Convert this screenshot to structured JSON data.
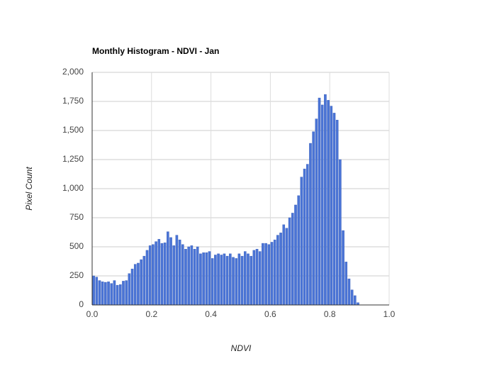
{
  "chart_data": {
    "type": "histogram",
    "title": "Monthly Histogram - NDVI - Jan",
    "xlabel": "NDVI",
    "ylabel": "Pixel Count",
    "bins": [
      0,
      0.01,
      0.02,
      0.03,
      0.04,
      0.05,
      0.06,
      0.07,
      0.08,
      0.09,
      0.1,
      0.11,
      0.12,
      0.13,
      0.14,
      0.15,
      0.16,
      0.17,
      0.18,
      0.19,
      0.2,
      0.21,
      0.22,
      0.23,
      0.24,
      0.25,
      0.26,
      0.27,
      0.28,
      0.29,
      0.3,
      0.31,
      0.32,
      0.33,
      0.34,
      0.35,
      0.36,
      0.37,
      0.38,
      0.39,
      0.4,
      0.41,
      0.42,
      0.43,
      0.44,
      0.45,
      0.46,
      0.47,
      0.48,
      0.49,
      0.5,
      0.51,
      0.52,
      0.53,
      0.54,
      0.55,
      0.56,
      0.57,
      0.58,
      0.59,
      0.6,
      0.61,
      0.62,
      0.63,
      0.64,
      0.65,
      0.66,
      0.67,
      0.68,
      0.69,
      0.7,
      0.71,
      0.72,
      0.73,
      0.74,
      0.75,
      0.76,
      0.77,
      0.78,
      0.79,
      0.8,
      0.81,
      0.82,
      0.83,
      0.84,
      0.85,
      0.86,
      0.87,
      0.88,
      0.89,
      0.9
    ],
    "counts": [
      250,
      240,
      210,
      200,
      195,
      200,
      185,
      210,
      170,
      175,
      205,
      210,
      270,
      310,
      350,
      360,
      390,
      420,
      470,
      510,
      520,
      545,
      565,
      530,
      535,
      630,
      580,
      510,
      600,
      560,
      520,
      480,
      500,
      510,
      480,
      500,
      440,
      450,
      450,
      460,
      400,
      430,
      440,
      430,
      440,
      420,
      440,
      410,
      400,
      440,
      420,
      460,
      440,
      420,
      470,
      480,
      460,
      530,
      530,
      520,
      540,
      560,
      600,
      620,
      690,
      660,
      750,
      790,
      860,
      940,
      1100,
      1170,
      1210,
      1390,
      1490,
      1600,
      1780,
      1720,
      1810,
      1760,
      1710,
      1650,
      1590,
      1250,
      640,
      370,
      225,
      130,
      80,
      20
    ],
    "color": "#4a74d6",
    "xlim": [
      0,
      1
    ],
    "xticks": [
      {
        "value": 0,
        "label": "0.0"
      },
      0.2,
      0.4,
      0.6,
      0.8,
      {
        "value": 1,
        "label": "1.0"
      }
    ],
    "ylim": [
      0,
      2000
    ],
    "yticks": [
      0,
      250,
      500,
      750,
      {
        "value": 1000,
        "label": "1,000"
      },
      {
        "value": 1250,
        "label": "1,250"
      },
      {
        "value": 1500,
        "label": "1,500"
      },
      {
        "value": 1750,
        "label": "1,750"
      },
      {
        "value": 2000,
        "label": "2,000"
      }
    ],
    "grid": true
  }
}
